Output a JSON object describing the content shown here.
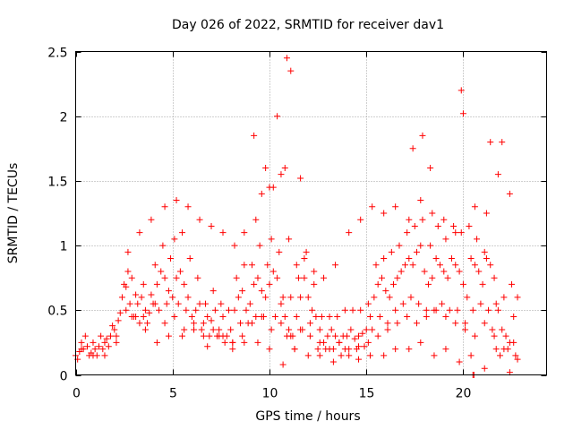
{
  "chart_data": {
    "type": "scatter",
    "title": "Day 026 of 2022, SRMTID for receiver dav1",
    "xlabel": "GPS time / hours",
    "ylabel": "SRMTID / TECUs",
    "xlim": [
      0,
      24.3
    ],
    "ylim": [
      0,
      2.5
    ],
    "xticks": [
      0,
      5,
      10,
      15,
      20
    ],
    "xtick_labels": [
      "0",
      "5",
      "10",
      "15",
      "20"
    ],
    "yticks": [
      0,
      0.5,
      1,
      1.5,
      2,
      2.5
    ],
    "ytick_labels": [
      "0",
      "0.5",
      "1",
      "1.5",
      "2",
      "2.5"
    ],
    "grid": true,
    "marker": "+",
    "series": [
      {
        "name": "SRMTID",
        "color": "#ff0000",
        "x": [
          0.0,
          0.2,
          0.4,
          0.6,
          0.8,
          1.0,
          1.2,
          1.4,
          1.6,
          1.8,
          2.0,
          2.2,
          2.4,
          2.6,
          2.8,
          3.0,
          3.2,
          3.4,
          3.6,
          3.8,
          4.0,
          4.2,
          4.4,
          4.6,
          4.8,
          5.0,
          5.2,
          5.4,
          5.6,
          5.8,
          6.0,
          6.2,
          6.4,
          6.6,
          6.8,
          7.0,
          7.2,
          7.4,
          7.6,
          7.8,
          8.0,
          8.2,
          8.4,
          8.6,
          8.8,
          9.0,
          9.2,
          9.4,
          9.6,
          9.8,
          10.0,
          10.2,
          10.4,
          10.6,
          10.8,
          11.0,
          11.2,
          11.4,
          11.6,
          11.8,
          12.0,
          12.2,
          12.4,
          12.6,
          12.8,
          13.0,
          13.2,
          13.4,
          13.6,
          13.8,
          14.0,
          14.2,
          14.4,
          14.6,
          14.8,
          15.0,
          15.2,
          15.4,
          15.6,
          15.8,
          16.0,
          16.2,
          16.4,
          16.6,
          16.8,
          17.0,
          17.2,
          17.4,
          17.6,
          17.8,
          18.0,
          18.2,
          18.4,
          18.6,
          18.8,
          19.0,
          19.2,
          19.4,
          19.6,
          19.8,
          20.0,
          20.2,
          20.4,
          20.6,
          20.8,
          21.0,
          21.2,
          21.4,
          21.6,
          21.8,
          22.0,
          22.2,
          22.4,
          22.6,
          22.8,
          0.1,
          0.3,
          0.5,
          0.7,
          0.9,
          1.1,
          1.3,
          1.5,
          1.7,
          1.9,
          2.1,
          2.3,
          2.5,
          2.7,
          2.9,
          3.1,
          3.3,
          3.5,
          3.7,
          3.9,
          4.1,
          4.3,
          4.5,
          4.7,
          4.9,
          5.1,
          5.3,
          5.5,
          5.7,
          5.9,
          6.1,
          6.3,
          6.5,
          6.7,
          6.9,
          7.1,
          7.3,
          7.5,
          7.7,
          7.9,
          8.1,
          8.3,
          8.5,
          8.7,
          8.9,
          9.1,
          9.3,
          9.5,
          9.7,
          9.9,
          10.1,
          10.3,
          10.5,
          10.7,
          10.9,
          11.1,
          11.3,
          11.5,
          11.7,
          11.9,
          12.1,
          12.3,
          12.5,
          12.7,
          12.9,
          13.1,
          13.3,
          13.5,
          13.7,
          13.9,
          14.1,
          14.3,
          14.5,
          14.7,
          14.9,
          15.1,
          15.3,
          15.5,
          15.7,
          15.9,
          16.1,
          16.3,
          16.5,
          16.7,
          16.9,
          17.1,
          17.3,
          17.5,
          17.7,
          17.9,
          18.1,
          18.3,
          18.5,
          18.7,
          18.9,
          19.1,
          19.3,
          19.5,
          19.7,
          19.9,
          20.1,
          20.3,
          20.5,
          20.7,
          20.9,
          21.1,
          21.3,
          21.5,
          21.7,
          21.9,
          22.1,
          22.3,
          22.5,
          22.7,
          2.7,
          3.3,
          3.9,
          4.6,
          5.2,
          5.8,
          6.4,
          7.0,
          7.6,
          8.2,
          8.7,
          9.3,
          9.6,
          10.2,
          10.6,
          11.0,
          11.4,
          11.8,
          12.3,
          12.8,
          13.4,
          14.1,
          14.7,
          15.3,
          15.9,
          16.5,
          17.2,
          17.8,
          18.4,
          19.0,
          19.6,
          20.6,
          21.2,
          21.8,
          22.4,
          9.2,
          9.8,
          10.0,
          10.4,
          10.8,
          10.9,
          11.1,
          11.6,
          17.4,
          17.9,
          18.3,
          19.9,
          20.0,
          21.4,
          22.0,
          2.9,
          4.2,
          5.5,
          6.8,
          8.1,
          9.4,
          10.7,
          12.0,
          13.3,
          14.6,
          15.9,
          17.2,
          18.5,
          19.8,
          21.1,
          22.4,
          3.5,
          4.8,
          6.1,
          7.4,
          8.7,
          10.0,
          11.3,
          12.6,
          13.9,
          15.2,
          16.5,
          17.8,
          19.1,
          20.4,
          21.7,
          22.8,
          0.3,
          0.9,
          1.5,
          2.1,
          2.6,
          3.1,
          3.6,
          4.1,
          4.6,
          5.1,
          5.6,
          6.1,
          6.6,
          7.1,
          7.6,
          8.1,
          8.6,
          9.1,
          9.6,
          10.1,
          10.6,
          11.1,
          11.6,
          12.1,
          12.6,
          13.1,
          13.6,
          14.1,
          14.6,
          15.1,
          15.6,
          16.1,
          16.6,
          17.1,
          17.6,
          18.1,
          18.6,
          19.1,
          19.6,
          20.1,
          20.6,
          21.1,
          21.6,
          22.1,
          22.6,
          20.5,
          20.55
        ],
        "y": [
          0.15,
          0.18,
          0.2,
          0.22,
          0.17,
          0.2,
          0.22,
          0.2,
          0.28,
          0.3,
          0.35,
          0.42,
          0.6,
          0.68,
          0.55,
          0.45,
          0.55,
          0.6,
          0.5,
          0.48,
          0.55,
          0.7,
          0.8,
          0.75,
          0.65,
          0.6,
          0.75,
          0.8,
          0.7,
          0.6,
          0.45,
          0.5,
          0.55,
          0.4,
          0.45,
          0.42,
          0.5,
          0.35,
          0.45,
          0.3,
          0.35,
          0.5,
          0.6,
          0.65,
          0.5,
          0.55,
          0.7,
          0.75,
          0.65,
          0.6,
          0.7,
          0.8,
          0.75,
          0.55,
          0.45,
          0.35,
          0.3,
          0.45,
          0.6,
          0.75,
          0.6,
          0.5,
          0.45,
          0.35,
          0.25,
          0.3,
          0.35,
          0.3,
          0.25,
          0.3,
          0.3,
          0.35,
          0.28,
          0.3,
          0.32,
          0.35,
          0.45,
          0.6,
          0.7,
          0.75,
          0.65,
          0.6,
          0.7,
          0.75,
          0.8,
          0.85,
          0.9,
          0.85,
          0.95,
          1.0,
          0.8,
          0.7,
          0.75,
          0.9,
          0.85,
          0.8,
          0.75,
          0.9,
          0.85,
          0.8,
          0.7,
          0.6,
          0.9,
          0.85,
          0.8,
          0.7,
          0.9,
          0.85,
          0.75,
          0.5,
          0.35,
          0.3,
          0.25,
          0.45,
          0.6,
          0.12,
          0.25,
          0.3,
          0.15,
          0.25,
          0.15,
          0.3,
          0.15,
          0.22,
          0.38,
          0.25,
          0.48,
          0.7,
          0.8,
          0.45,
          0.62,
          0.4,
          0.7,
          0.4,
          0.62,
          0.85,
          0.5,
          1.0,
          0.55,
          0.9,
          1.05,
          0.55,
          1.1,
          0.5,
          0.9,
          0.35,
          0.75,
          0.35,
          0.55,
          0.3,
          0.65,
          0.3,
          0.55,
          0.25,
          0.5,
          0.25,
          0.75,
          0.4,
          0.85,
          0.4,
          0.85,
          0.45,
          1.0,
          0.45,
          0.85,
          1.05,
          0.45,
          0.95,
          0.6,
          0.3,
          0.6,
          0.2,
          0.75,
          0.35,
          0.95,
          0.4,
          0.7,
          0.2,
          0.45,
          0.2,
          0.45,
          0.2,
          0.45,
          0.15,
          0.5,
          0.15,
          0.5,
          0.2,
          0.5,
          0.22,
          0.55,
          0.35,
          0.85,
          0.45,
          0.9,
          0.4,
          0.95,
          0.5,
          1.0,
          0.55,
          1.1,
          0.6,
          1.15,
          0.55,
          1.2,
          0.5,
          1.0,
          0.5,
          1.15,
          0.55,
          1.05,
          0.5,
          1.15,
          0.5,
          1.1,
          0.4,
          1.15,
          0.5,
          1.05,
          0.55,
          0.95,
          0.5,
          0.35,
          0.55,
          0.15,
          0.6,
          0.2,
          0.7,
          0.15,
          0.95,
          1.1,
          1.2,
          1.3,
          1.35,
          1.3,
          1.2,
          1.15,
          1.1,
          1.0,
          1.1,
          1.2,
          1.4,
          1.45,
          1.55,
          1.05,
          0.85,
          0.9,
          0.8,
          0.75,
          0.85,
          1.1,
          1.2,
          1.3,
          1.25,
          1.3,
          1.2,
          1.35,
          1.25,
          1.2,
          1.1,
          1.3,
          1.25,
          1.55,
          1.4,
          1.85,
          1.6,
          1.45,
          2.0,
          1.6,
          2.45,
          2.35,
          1.52,
          1.75,
          1.85,
          1.6,
          2.2,
          2.02,
          1.8,
          1.8,
          0.75,
          0.25,
          0.3,
          0.22,
          0.2,
          0.25,
          0.08,
          0.15,
          0.1,
          0.12,
          0.15,
          0.2,
          0.15,
          0.1,
          0.05,
          0.02,
          0.45,
          0.3,
          0.35,
          0.3,
          0.25,
          0.2,
          0.2,
          0.15,
          0.2,
          0.15,
          0.2,
          0.25,
          0.2,
          0.15,
          0.2,
          0.12,
          0.2,
          0.15,
          0.25,
          0.3,
          0.5,
          0.45,
          0.35,
          0.55,
          0.4,
          0.45,
          0.35,
          0.4,
          0.3,
          0.35,
          0.3,
          0.25,
          0.3,
          0.4,
          0.45,
          0.35,
          0.4,
          0.3,
          0.35,
          0.3,
          0.25,
          0.2,
          0.25,
          0.2,
          0.22,
          0.25,
          0.3,
          0.35,
          0.4,
          0.45,
          0.4,
          0.45,
          0.5,
          0.45,
          0.4,
          0.35,
          0.3,
          0.4,
          0.3,
          0.2,
          0.25,
          0.0,
          0.0
        ]
      }
    ]
  }
}
